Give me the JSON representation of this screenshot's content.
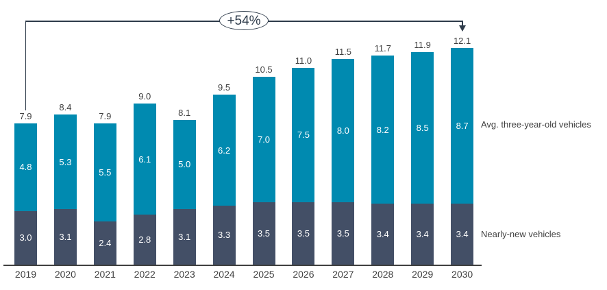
{
  "chart_data": {
    "type": "bar",
    "stacked": true,
    "title": "",
    "xlabel": "",
    "ylabel": "",
    "categories": [
      "2019",
      "2020",
      "2021",
      "2022",
      "2023",
      "2024",
      "2025",
      "2026",
      "2027",
      "2028",
      "2029",
      "2030"
    ],
    "series": [
      {
        "name": "Nearly-new vehicles",
        "color": "#434F66",
        "label_color": "#FFFFFF",
        "values": [
          3.0,
          3.1,
          2.4,
          2.8,
          3.1,
          3.3,
          3.5,
          3.5,
          3.5,
          3.4,
          3.4,
          3.4
        ]
      },
      {
        "name": "Avg. three-year-old vehicles",
        "color": "#008AB0",
        "label_color": "#FFFFFF",
        "values": [
          4.8,
          5.3,
          5.5,
          6.1,
          5.0,
          6.2,
          7.0,
          7.5,
          8.0,
          8.2,
          8.5,
          8.7
        ]
      }
    ],
    "totals": [
      7.9,
      8.4,
      7.9,
      9.0,
      8.1,
      9.5,
      10.5,
      11.0,
      11.5,
      11.7,
      11.9,
      12.1
    ],
    "annotation": {
      "label": "+54%",
      "from_category": "2019",
      "to_category": "2030"
    },
    "ylim": [
      0,
      13
    ],
    "grid": false,
    "y_axis_visible": false,
    "legend_position": "right",
    "value_labels": true,
    "total_labels": true
  }
}
